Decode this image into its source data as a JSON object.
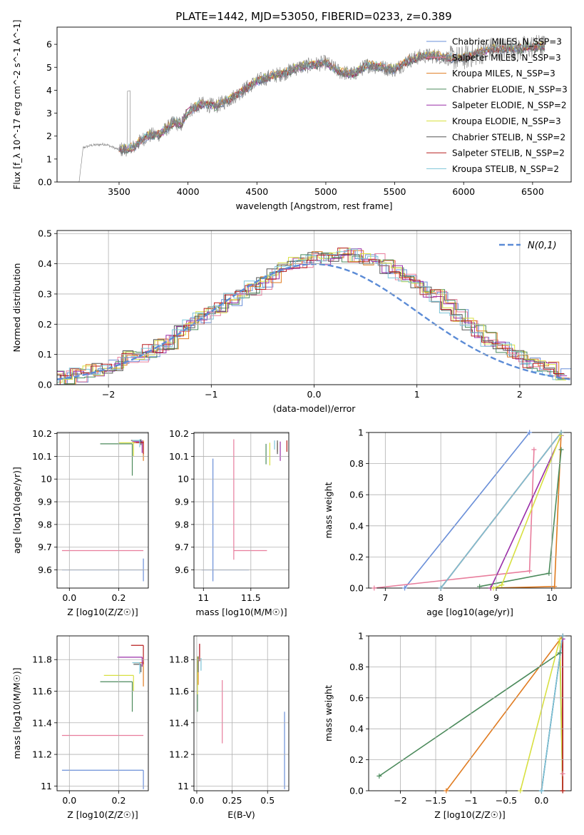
{
  "figure": {
    "title": "PLATE=1442, MJD=53050, FIBERID=0233, z=0.389"
  },
  "chart_data": [
    {
      "id": "spectrum",
      "type": "line",
      "xlabel": "wavelength [Angstrom, rest frame]",
      "ylabel": "Flux [f_λ 10^-17 erg cm^-2 s^-1 A^-1]",
      "xlim": [
        3050,
        6780
      ],
      "ylim": [
        0,
        6.75
      ],
      "xticks": [
        3500,
        4000,
        4500,
        5000,
        5500,
        6000,
        6500
      ],
      "yticks": [
        0,
        1,
        2,
        3,
        4,
        5,
        6
      ],
      "grid": false,
      "legend_position": "right",
      "data_x_range": [
        3210,
        6590
      ],
      "continuum": {
        "x": [
          3210,
          3240,
          3300,
          3400,
          3500,
          3600,
          3700,
          3800,
          3900,
          3950,
          4000,
          4100,
          4200,
          4300,
          4400,
          4500,
          4600,
          4700,
          4800,
          4900,
          5000,
          5100,
          5200,
          5300,
          5400,
          5500,
          5600,
          5700,
          5800,
          5900,
          6000,
          6100,
          6200,
          6300,
          6400,
          6500,
          6590
        ],
        "y": [
          0,
          1.5,
          1.6,
          1.65,
          1.4,
          1.5,
          2.0,
          2.1,
          2.6,
          2.5,
          3.1,
          3.4,
          3.3,
          3.6,
          4.0,
          4.4,
          4.6,
          4.75,
          5.0,
          5.1,
          5.2,
          4.8,
          4.7,
          5.1,
          5.0,
          4.9,
          5.3,
          5.5,
          5.5,
          5.4,
          5.4,
          5.6,
          5.8,
          5.8,
          5.8,
          5.9,
          5.9
        ]
      },
      "series": [
        {
          "name": "Chabrier MILES, N_SSP=3",
          "color": "#6a8fd8"
        },
        {
          "name": "Salpeter MILES, N_SSP=3",
          "color": "#e87d9c"
        },
        {
          "name": "Kroupa MILES, N_SSP=3",
          "color": "#e07b20"
        },
        {
          "name": "Chabrier ELODIE, N_SSP=3",
          "color": "#4b8a5b"
        },
        {
          "name": "Salpeter ELODIE, N_SSP=2",
          "color": "#9a2ea8"
        },
        {
          "name": "Kroupa ELODIE, N_SSP=3",
          "color": "#d8e040"
        },
        {
          "name": "Chabrier STELIB, N_SSP=2",
          "color": "#555555"
        },
        {
          "name": "Salpeter STELIB, N_SSP=2",
          "color": "#b81e1e"
        },
        {
          "name": "Kroupa STELIB, N_SSP=2",
          "color": "#7cc4d8"
        }
      ]
    },
    {
      "id": "residuals",
      "type": "line",
      "xlabel": "(data-model)/error",
      "ylabel": "Normed distribution",
      "xlim": [
        -2.5,
        2.5
      ],
      "ylim": [
        0,
        0.51
      ],
      "xticks": [
        -2,
        -1,
        0,
        1,
        2
      ],
      "yticks": [
        0.0,
        0.1,
        0.2,
        0.3,
        0.4,
        0.5
      ],
      "grid": true,
      "legend_position": "top-right",
      "gaussian_label": "N(0,1)",
      "gaussian_color": "#5b8bd6",
      "histogram_bin_width": 0.1,
      "histogram_bin_start": -2.5,
      "histogram_envelope": [
        0.02,
        0.025,
        0.03,
        0.045,
        0.05,
        0.06,
        0.07,
        0.09,
        0.1,
        0.115,
        0.13,
        0.14,
        0.17,
        0.2,
        0.22,
        0.24,
        0.26,
        0.28,
        0.3,
        0.32,
        0.34,
        0.36,
        0.38,
        0.4,
        0.41,
        0.42,
        0.42,
        0.43,
        0.43,
        0.43,
        0.42,
        0.41,
        0.39,
        0.37,
        0.35,
        0.33,
        0.31,
        0.29,
        0.26,
        0.23,
        0.2,
        0.18,
        0.15,
        0.13,
        0.11,
        0.09,
        0.07,
        0.06,
        0.05,
        0.04
      ]
    },
    {
      "id": "age-vs-Z",
      "type": "scatter",
      "xlabel": "Z [log10(Z/Z☉)]",
      "ylabel": "age [log10(age/yr)]",
      "xlim": [
        -0.05,
        0.32
      ],
      "ylim": [
        9.52,
        10.205
      ],
      "xticks": [
        0.0,
        0.2
      ],
      "yticks": [
        9.6,
        9.7,
        9.8,
        9.9,
        10.0,
        10.1,
        10.2
      ],
      "grid": true,
      "points": [
        {
          "x": 0.3,
          "y": 9.6,
          "xerr_lo": 0.33,
          "yerr_lo": 0.05,
          "yerr_hi": 0.05,
          "color": "#6a8fd8"
        },
        {
          "x": 0.3,
          "y": 9.685,
          "xerr_lo": 0.33,
          "yerr_lo": 0.0,
          "yerr_hi": 0.0,
          "color": "#e87d9c"
        },
        {
          "x": 0.3,
          "y": 10.16,
          "xerr_lo": 0.04,
          "yerr_lo": 0.08,
          "yerr_hi": 0.01,
          "color": "#e07b20"
        },
        {
          "x": 0.255,
          "y": 10.155,
          "xerr_lo": 0.13,
          "yerr_lo": 0.14,
          "yerr_hi": 0.0,
          "color": "#4b8a5b"
        },
        {
          "x": 0.295,
          "y": 10.165,
          "xerr_lo": 0.04,
          "yerr_lo": 0.05,
          "yerr_hi": 0.005,
          "color": "#9a2ea8"
        },
        {
          "x": 0.26,
          "y": 10.16,
          "xerr_lo": 0.06,
          "yerr_lo": 0.06,
          "yerr_hi": 0.005,
          "color": "#d8e040"
        },
        {
          "x": 0.29,
          "y": 10.17,
          "xerr_lo": 0.04,
          "yerr_lo": 0.02,
          "yerr_hi": 0.005,
          "color": "#555555"
        },
        {
          "x": 0.3,
          "y": 10.16,
          "xerr_lo": 0.03,
          "yerr_lo": 0.05,
          "yerr_hi": 0.005,
          "color": "#b81e1e"
        },
        {
          "x": 0.285,
          "y": 10.17,
          "xerr_lo": 0.03,
          "yerr_lo": 0.03,
          "yerr_hi": 0.005,
          "color": "#7cc4d8"
        }
      ]
    },
    {
      "id": "age-vs-mass",
      "type": "scatter",
      "xlabel": "mass [log10(M/M☉)]",
      "ylabel": "",
      "xlim": [
        10.9,
        11.9
      ],
      "ylim": [
        9.52,
        10.205
      ],
      "xticks": [
        11.0,
        11.5
      ],
      "yticks": [
        9.6,
        9.7,
        9.8,
        9.9,
        10.0,
        10.1,
        10.2
      ],
      "grid": true,
      "points": [
        {
          "x": 11.1,
          "y": 9.6,
          "xerr_lo": 0.12,
          "xerr_hi": 0.38,
          "yerr_lo": 0.05,
          "yerr_hi": 0.49,
          "color": "#6a8fd8"
        },
        {
          "x": 11.32,
          "y": 9.685,
          "xerr_lo": 0.0,
          "xerr_hi": 0.35,
          "yerr_lo": 0.04,
          "yerr_hi": 0.49,
          "color": "#e87d9c"
        },
        {
          "x": 11.78,
          "y": 10.16,
          "xerr_lo": 0.0,
          "xerr_hi": 0.0,
          "yerr_lo": 0.04,
          "yerr_hi": 0.0,
          "color": "#e07b20"
        },
        {
          "x": 11.66,
          "y": 10.155,
          "xerr_lo": 0.0,
          "xerr_hi": 0.0,
          "yerr_lo": 0.09,
          "yerr_hi": 0.0,
          "color": "#4b8a5b"
        },
        {
          "x": 11.81,
          "y": 10.165,
          "xerr_lo": 0.0,
          "xerr_hi": 0.0,
          "yerr_lo": 0.085,
          "yerr_hi": 0.0,
          "color": "#9a2ea8"
        },
        {
          "x": 11.7,
          "y": 10.16,
          "xerr_lo": 0.0,
          "xerr_hi": 0.0,
          "yerr_lo": 0.1,
          "yerr_hi": 0.0,
          "color": "#d8e040"
        },
        {
          "x": 11.78,
          "y": 10.17,
          "xerr_lo": 0.0,
          "xerr_hi": 0.0,
          "yerr_lo": 0.06,
          "yerr_hi": 0.0,
          "color": "#555555"
        },
        {
          "x": 11.88,
          "y": 10.17,
          "xerr_lo": 0.0,
          "xerr_hi": 0.0,
          "yerr_lo": 0.05,
          "yerr_hi": 0.0,
          "color": "#b81e1e"
        },
        {
          "x": 11.75,
          "y": 10.17,
          "xerr_lo": 0.0,
          "xerr_hi": 0.0,
          "yerr_lo": 0.04,
          "yerr_hi": 0.0,
          "color": "#7cc4d8"
        }
      ]
    },
    {
      "id": "mass-weight-vs-age",
      "type": "line",
      "xlabel": "age [log10(age/yr)]",
      "ylabel": "mass weight",
      "xlim": [
        6.7,
        10.35
      ],
      "ylim": [
        0,
        1.0
      ],
      "xticks": [
        7,
        8,
        9,
        10
      ],
      "yticks": [
        0.0,
        0.2,
        0.4,
        0.6,
        0.8,
        1.0
      ],
      "grid": true,
      "series": [
        {
          "color": "#6a8fd8",
          "x": [
            7.35,
            9.6
          ],
          "y": [
            0.0,
            1.0
          ]
        },
        {
          "color": "#e87d9c",
          "x": [
            6.8,
            9.6,
            9.68
          ],
          "y": [
            0.0,
            0.11,
            0.89
          ]
        },
        {
          "color": "#e07b20",
          "x": [
            8.9,
            10.05,
            10.17
          ],
          "y": [
            0.0,
            0.01,
            1.0
          ]
        },
        {
          "color": "#4b8a5b",
          "x": [
            8.7,
            9.95,
            10.17
          ],
          "y": [
            0.01,
            0.095,
            0.89
          ]
        },
        {
          "color": "#9a2ea8",
          "x": [
            8.9,
            10.17
          ],
          "y": [
            0.0,
            0.98
          ]
        },
        {
          "color": "#d8e040",
          "x": [
            8.95,
            9.1,
            10.16
          ],
          "y": [
            0.0,
            0.02,
            0.98
          ]
        },
        {
          "color": "#555555",
          "x": [
            8.0,
            10.17
          ],
          "y": [
            0.0,
            1.0
          ]
        },
        {
          "color": "#b81e1e",
          "x": [
            8.0,
            10.17
          ],
          "y": [
            0.0,
            1.0
          ]
        },
        {
          "color": "#7cc4d8",
          "x": [
            8.0,
            10.17
          ],
          "y": [
            0.0,
            1.0
          ]
        }
      ]
    },
    {
      "id": "mass-vs-Z",
      "type": "scatter",
      "xlabel": "Z [log10(Z/Z☉)]",
      "ylabel": "mass [log10(M/M☉)]",
      "xlim": [
        -0.05,
        0.32
      ],
      "ylim": [
        10.97,
        11.95
      ],
      "xticks": [
        0.0,
        0.2
      ],
      "yticks": [
        11.0,
        11.2,
        11.4,
        11.6,
        11.8
      ],
      "grid": true,
      "points": [
        {
          "x": 0.3,
          "y": 11.1,
          "xerr_lo": 0.33,
          "yerr_lo": 0.12,
          "yerr_hi": 0.0,
          "color": "#6a8fd8"
        },
        {
          "x": 0.3,
          "y": 11.32,
          "xerr_lo": 0.33,
          "yerr_lo": 0.0,
          "yerr_hi": 0.0,
          "color": "#e87d9c"
        },
        {
          "x": 0.3,
          "y": 11.78,
          "xerr_lo": 0.04,
          "yerr_lo": 0.15,
          "yerr_hi": 0.0,
          "color": "#e07b20"
        },
        {
          "x": 0.255,
          "y": 11.66,
          "xerr_lo": 0.13,
          "yerr_lo": 0.19,
          "yerr_hi": 0.0,
          "color": "#4b8a5b"
        },
        {
          "x": 0.295,
          "y": 11.815,
          "xerr_lo": 0.1,
          "yerr_lo": 0.06,
          "yerr_hi": 0.0,
          "color": "#9a2ea8"
        },
        {
          "x": 0.26,
          "y": 11.7,
          "xerr_lo": 0.12,
          "yerr_lo": 0.1,
          "yerr_hi": 0.0,
          "color": "#d8e040"
        },
        {
          "x": 0.29,
          "y": 11.77,
          "xerr_lo": 0.03,
          "yerr_lo": 0.05,
          "yerr_hi": 0.0,
          "color": "#555555"
        },
        {
          "x": 0.3,
          "y": 11.89,
          "xerr_lo": 0.05,
          "yerr_lo": 0.12,
          "yerr_hi": 0.0,
          "color": "#b81e1e"
        },
        {
          "x": 0.285,
          "y": 11.78,
          "xerr_lo": 0.03,
          "yerr_lo": 0.07,
          "yerr_hi": 0.0,
          "color": "#7cc4d8"
        }
      ]
    },
    {
      "id": "mass-vs-EBV",
      "type": "scatter",
      "xlabel": "E(B-V)",
      "ylabel": "",
      "xlim": [
        -0.02,
        0.65
      ],
      "ylim": [
        10.97,
        11.95
      ],
      "xticks": [
        0.0,
        0.25,
        0.5
      ],
      "yticks": [
        11.0,
        11.2,
        11.4,
        11.6,
        11.8
      ],
      "grid": true,
      "points": [
        {
          "x": 0.62,
          "y": 11.22,
          "yerr_lo": 0.24,
          "yerr_hi": 0.25,
          "color": "#6a8fd8"
        },
        {
          "x": 0.18,
          "y": 11.47,
          "yerr_lo": 0.2,
          "yerr_hi": 0.2,
          "color": "#e87d9c"
        },
        {
          "x": 0.01,
          "y": 11.74,
          "yerr_lo": 0.1,
          "yerr_hi": 0.06,
          "color": "#e07b20"
        },
        {
          "x": 0.005,
          "y": 11.62,
          "yerr_lo": 0.15,
          "yerr_hi": 0.17,
          "color": "#4b8a5b"
        },
        {
          "x": 0.02,
          "y": 11.86,
          "yerr_lo": 0.04,
          "yerr_hi": 0.04,
          "color": "#9a2ea8"
        },
        {
          "x": 0.005,
          "y": 11.7,
          "yerr_lo": 0.12,
          "yerr_hi": 0.12,
          "color": "#d8e040"
        },
        {
          "x": 0.01,
          "y": 11.77,
          "yerr_lo": 0.05,
          "yerr_hi": 0.05,
          "color": "#555555"
        },
        {
          "x": 0.02,
          "y": 11.84,
          "yerr_lo": 0.05,
          "yerr_hi": 0.06,
          "color": "#b81e1e"
        },
        {
          "x": 0.03,
          "y": 11.77,
          "yerr_lo": 0.04,
          "yerr_hi": 0.04,
          "color": "#7cc4d8"
        }
      ]
    },
    {
      "id": "mass-weight-vs-Z",
      "type": "line",
      "xlabel": "Z [log10(Z/Z☉)]",
      "ylabel": "mass weight",
      "xlim": [
        -2.45,
        0.42
      ],
      "ylim": [
        0,
        1.0
      ],
      "xticks": [
        -2.0,
        -1.5,
        -1.0,
        -0.5,
        0.0
      ],
      "yticks": [
        0.0,
        0.2,
        0.4,
        0.6,
        0.8,
        1.0
      ],
      "grid": true,
      "series": [
        {
          "color": "#6a8fd8",
          "x": [
            0.0,
            0.3
          ],
          "y": [
            0.0,
            1.0
          ]
        },
        {
          "color": "#e87d9c",
          "x": [
            0.3,
            0.3
          ],
          "y": [
            0.11,
            1.0
          ]
        },
        {
          "color": "#e07b20",
          "x": [
            -1.35,
            0.3
          ],
          "y": [
            0.0,
            1.0
          ]
        },
        {
          "color": "#4b8a5b",
          "x": [
            -2.3,
            0.26,
            0.3,
            0.3
          ],
          "y": [
            0.095,
            0.89,
            0.0,
            1.0
          ]
        },
        {
          "color": "#9a2ea8",
          "x": [
            0.3,
            0.3
          ],
          "y": [
            0.0,
            0.98
          ]
        },
        {
          "color": "#d8e040",
          "x": [
            -0.3,
            0.26,
            0.3
          ],
          "y": [
            0.0,
            0.98,
            0.0
          ]
        },
        {
          "color": "#555555",
          "x": [
            0.0,
            0.3
          ],
          "y": [
            0.0,
            1.0
          ]
        },
        {
          "color": "#b81e1e",
          "x": [
            0.3,
            0.3
          ],
          "y": [
            0.0,
            1.0
          ]
        },
        {
          "color": "#7cc4d8",
          "x": [
            0.0,
            0.3
          ],
          "y": [
            0.0,
            1.0
          ]
        }
      ]
    }
  ]
}
